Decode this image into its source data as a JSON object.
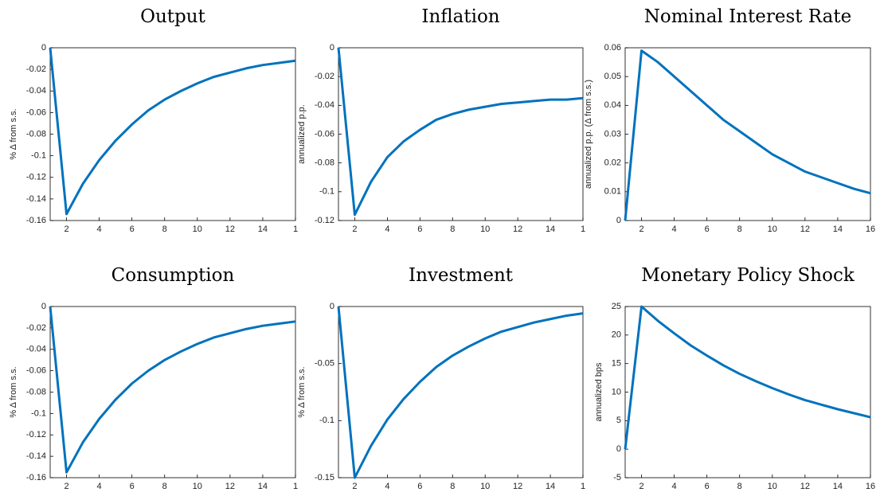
{
  "chart_data": [
    {
      "type": "line",
      "title": "Output",
      "y_label": "% Δ from s.s.",
      "x": [
        1,
        2,
        3,
        4,
        5,
        6,
        7,
        8,
        9,
        10,
        11,
        12,
        13,
        14,
        15,
        16
      ],
      "xlim": [
        1,
        16
      ],
      "xticks": [
        2,
        4,
        6,
        8,
        10,
        12,
        14,
        {
          "value": 16,
          "label": "1"
        }
      ],
      "ylim": [
        -0.16,
        0
      ],
      "yticks": [
        -0.16,
        -0.14,
        -0.12,
        -0.1,
        -0.08,
        -0.06,
        -0.04,
        -0.02,
        0
      ],
      "series": [
        {
          "color": "#0072bd",
          "values": [
            0,
            -0.154,
            -0.126,
            -0.104,
            -0.086,
            -0.071,
            -0.058,
            -0.048,
            -0.04,
            -0.033,
            -0.027,
            -0.023,
            -0.019,
            -0.016,
            -0.014,
            -0.012
          ]
        }
      ]
    },
    {
      "type": "line",
      "title": "Inflation",
      "y_label": "annualized p.p.",
      "x": [
        1,
        2,
        3,
        4,
        5,
        6,
        7,
        8,
        9,
        10,
        11,
        12,
        13,
        14,
        15,
        16
      ],
      "xlim": [
        1,
        16
      ],
      "xticks": [
        2,
        4,
        6,
        8,
        10,
        12,
        14,
        {
          "value": 16,
          "label": "1"
        }
      ],
      "ylim": [
        -0.12,
        0
      ],
      "yticks": [
        -0.12,
        -0.1,
        -0.08,
        -0.06,
        -0.04,
        -0.02,
        0
      ],
      "series": [
        {
          "color": "#0072bd",
          "values": [
            0,
            -0.116,
            -0.093,
            -0.076,
            -0.065,
            -0.057,
            -0.05,
            -0.046,
            -0.043,
            -0.041,
            -0.039,
            -0.038,
            -0.037,
            -0.036,
            -0.036,
            -0.035
          ]
        }
      ]
    },
    {
      "type": "line",
      "title": "Nominal Interest Rate",
      "y_label": "annualized p.p. (Δ from s.s.)",
      "x": [
        1,
        2,
        3,
        4,
        5,
        6,
        7,
        8,
        9,
        10,
        11,
        12,
        13,
        14,
        15,
        16
      ],
      "xlim": [
        1,
        16
      ],
      "xticks": [
        2,
        4,
        6,
        8,
        10,
        12,
        14,
        16
      ],
      "ylim": [
        0,
        0.06
      ],
      "yticks": [
        0,
        0.01,
        0.02,
        0.03,
        0.04,
        0.05,
        0.06
      ],
      "series": [
        {
          "color": "#0072bd",
          "values": [
            0,
            0.059,
            0.055,
            0.05,
            0.045,
            0.04,
            0.035,
            0.031,
            0.027,
            0.023,
            0.02,
            0.017,
            0.015,
            0.013,
            0.011,
            0.0095
          ]
        }
      ]
    },
    {
      "type": "line",
      "title": "Consumption",
      "y_label": "% Δ from s.s.",
      "x": [
        1,
        2,
        3,
        4,
        5,
        6,
        7,
        8,
        9,
        10,
        11,
        12,
        13,
        14,
        15,
        16
      ],
      "xlim": [
        1,
        16
      ],
      "xticks": [
        2,
        4,
        6,
        8,
        10,
        12,
        14,
        {
          "value": 16,
          "label": "1"
        }
      ],
      "ylim": [
        -0.16,
        0
      ],
      "yticks": [
        -0.16,
        -0.14,
        -0.12,
        -0.1,
        -0.08,
        -0.06,
        -0.04,
        -0.02,
        0
      ],
      "series": [
        {
          "color": "#0072bd",
          "values": [
            0,
            -0.155,
            -0.127,
            -0.105,
            -0.087,
            -0.072,
            -0.06,
            -0.05,
            -0.042,
            -0.035,
            -0.029,
            -0.025,
            -0.021,
            -0.018,
            -0.016,
            -0.014
          ]
        }
      ]
    },
    {
      "type": "line",
      "title": "Investment",
      "y_label": "% Δ from s.s.",
      "x": [
        1,
        2,
        3,
        4,
        5,
        6,
        7,
        8,
        9,
        10,
        11,
        12,
        13,
        14,
        15,
        16
      ],
      "xlim": [
        1,
        16
      ],
      "xticks": [
        2,
        4,
        6,
        8,
        10,
        12,
        14,
        {
          "value": 16,
          "label": "1"
        }
      ],
      "ylim": [
        -0.15,
        0
      ],
      "yticks": [
        -0.15,
        -0.1,
        -0.05,
        0
      ],
      "series": [
        {
          "color": "#0072bd",
          "values": [
            0,
            -0.15,
            -0.122,
            -0.099,
            -0.081,
            -0.066,
            -0.053,
            -0.043,
            -0.035,
            -0.028,
            -0.022,
            -0.018,
            -0.014,
            -0.011,
            -0.008,
            -0.006
          ]
        }
      ]
    },
    {
      "type": "line",
      "title": "Monetary Policy Shock",
      "y_label": "annualized bps",
      "x": [
        1,
        2,
        3,
        4,
        5,
        6,
        7,
        8,
        9,
        10,
        11,
        12,
        13,
        14,
        15,
        16
      ],
      "xlim": [
        1,
        16
      ],
      "xticks": [
        2,
        4,
        6,
        8,
        10,
        12,
        14,
        16
      ],
      "ylim": [
        -5,
        25
      ],
      "yticks": [
        -5,
        0,
        5,
        10,
        15,
        20,
        25
      ],
      "series": [
        {
          "color": "#0072bd",
          "values": [
            0,
            25,
            22.5,
            20.3,
            18.2,
            16.4,
            14.7,
            13.2,
            11.9,
            10.7,
            9.6,
            8.6,
            7.8,
            7.0,
            6.3,
            5.6
          ]
        }
      ]
    }
  ]
}
